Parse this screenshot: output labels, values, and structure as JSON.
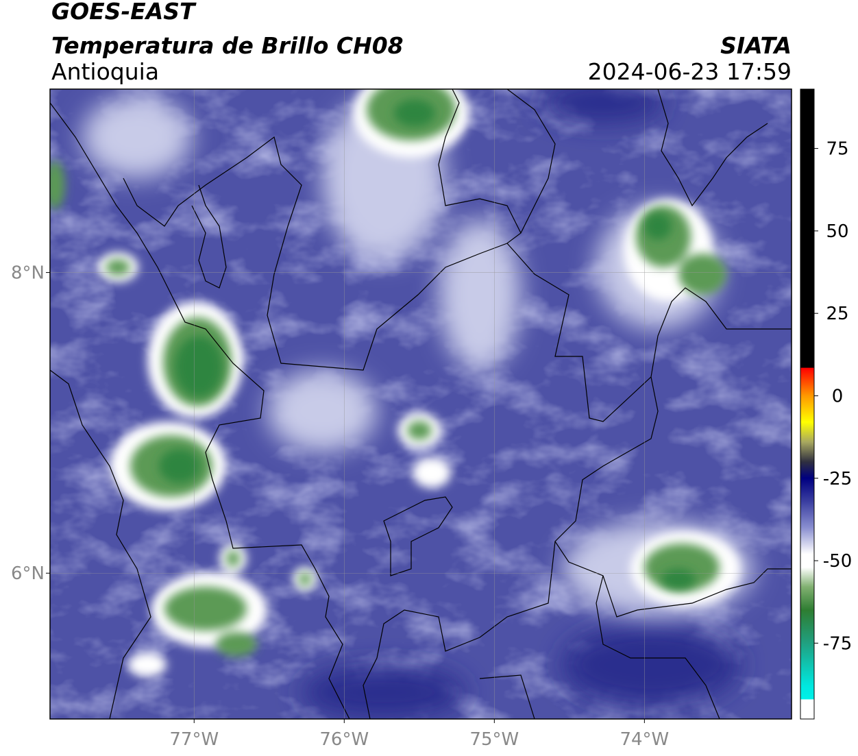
{
  "header": {
    "title": "GOES-EAST",
    "subtitle": "Temperatura de Brillo CH08",
    "region": "Antioquia",
    "source": "SIATA",
    "datetime": "2024-06-23 17:59"
  },
  "map": {
    "lonlim": [
      -77.96,
      -73.02
    ],
    "latlim": [
      5.03,
      9.22
    ],
    "xticks": [
      {
        "value": -77,
        "label": "77°W"
      },
      {
        "value": -76,
        "label": "76°W"
      },
      {
        "value": -75,
        "label": "75°W"
      },
      {
        "value": -74,
        "label": "74°W"
      }
    ],
    "yticks": [
      {
        "value": 8,
        "label": "8°N"
      },
      {
        "value": 6,
        "label": "6°N"
      }
    ],
    "grid": true
  },
  "colorbar": {
    "lim": [
      -98,
      93
    ],
    "ticks": [
      75,
      50,
      25,
      0,
      -25,
      -50,
      -75
    ],
    "stops": [
      {
        "value": 93,
        "color": "#000000"
      },
      {
        "value": 8.6,
        "color": "#000000"
      },
      {
        "value": 8.4,
        "color": "#ff0000"
      },
      {
        "value": 0,
        "color": "#ff9900"
      },
      {
        "value": -8,
        "color": "#ffff00"
      },
      {
        "value": -14,
        "color": "#a8a860"
      },
      {
        "value": -20,
        "color": "#303040"
      },
      {
        "value": -25,
        "color": "#000080"
      },
      {
        "value": -32,
        "color": "#3a3ea0"
      },
      {
        "value": -40,
        "color": "#8a8fd0"
      },
      {
        "value": -48,
        "color": "#ffffff"
      },
      {
        "value": -52,
        "color": "#ffffff"
      },
      {
        "value": -58,
        "color": "#80b070"
      },
      {
        "value": -65,
        "color": "#2e7d32"
      },
      {
        "value": -75,
        "color": "#20a080"
      },
      {
        "value": -88,
        "color": "#00e8e0"
      },
      {
        "value": -92,
        "color": "#00f0e8"
      },
      {
        "value": -92.1,
        "color": "#ffffff"
      },
      {
        "value": -98,
        "color": "#ffffff"
      }
    ]
  }
}
